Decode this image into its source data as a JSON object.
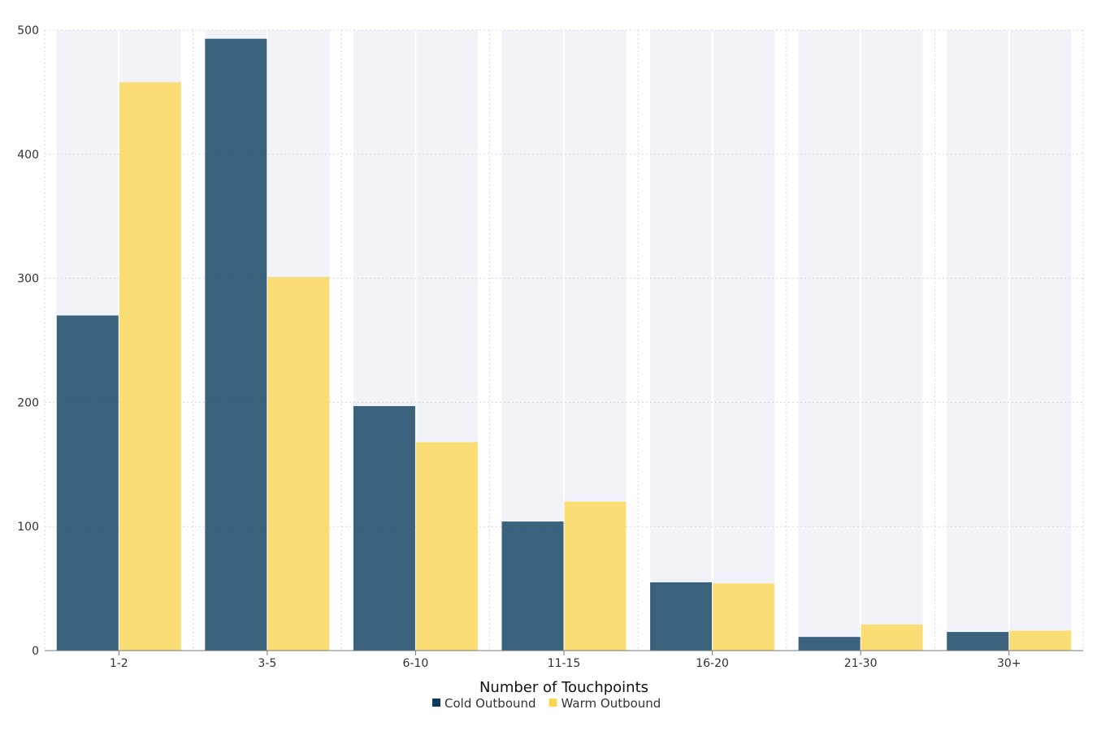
{
  "chart_data": {
    "type": "bar",
    "title": "",
    "xlabel": "Number of Touchpoints",
    "ylabel": "",
    "categories": [
      "1-2",
      "3-5",
      "6-10",
      "11-15",
      "16-20",
      "21-30",
      "30+"
    ],
    "series": [
      {
        "name": "Cold Outbound",
        "values": [
          270,
          493,
          197,
          104,
          55,
          11,
          15
        ],
        "color": "#1b4866",
        "legend_color": "#0e3b5c"
      },
      {
        "name": "Warm Outbound",
        "values": [
          458,
          301,
          168,
          120,
          54,
          21,
          16
        ],
        "color": "#fbdb6e",
        "legend_color": "#f9d64f"
      }
    ],
    "ylim": [
      0,
      500
    ],
    "yticks": [
      0,
      100,
      200,
      300,
      400,
      500
    ],
    "grid": true,
    "legend_position": "bottom-center",
    "colors": {
      "background_column": "#f2f3f8",
      "gridline": "#d8d8d8",
      "axis_line": "#777777"
    }
  }
}
